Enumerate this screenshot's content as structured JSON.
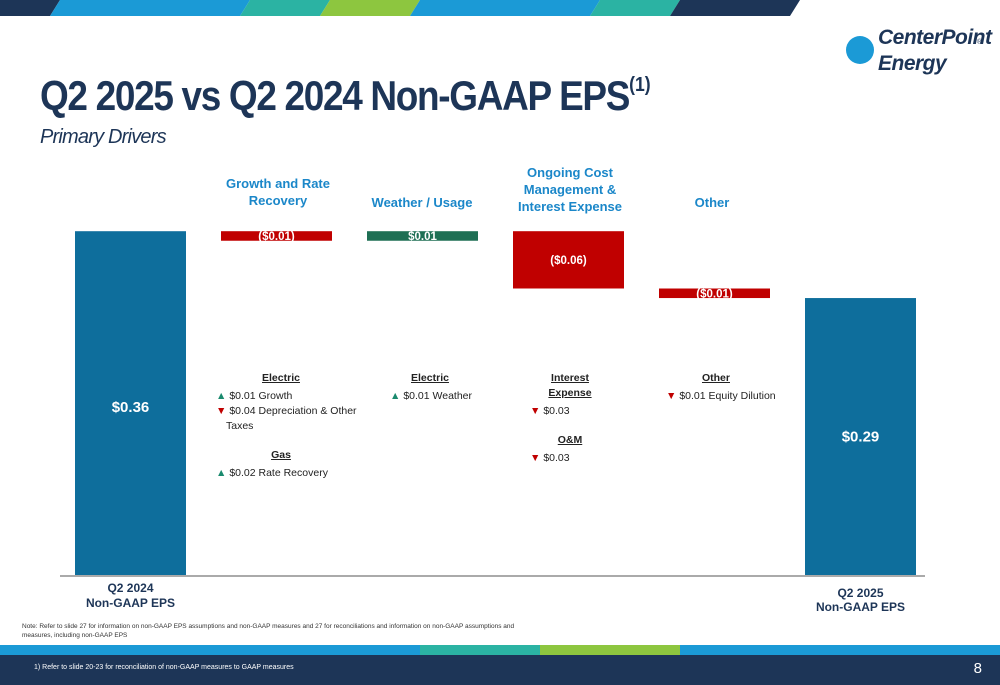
{
  "title": "Q2 2025 vs Q2 2024 Non-GAAP EPS",
  "title_sup": "(1)",
  "subtitle": "Primary Drivers",
  "logo": {
    "line1": "CenterPoint",
    "line2": "Energy",
    "reg": "®"
  },
  "colors": {
    "navy": "#1d3557",
    "blue_bar": "#0e6e9c",
    "red": "#c00000",
    "green": "#1e6f54",
    "accent_blue": "#1b87c9"
  },
  "chart_data": {
    "type": "waterfall",
    "baseline": 0,
    "start": {
      "label_line1": "Q2 2024",
      "label_line2": "Non-GAAP EPS",
      "value": 0.36,
      "display": "$0.36"
    },
    "steps": [
      {
        "name_lines": [
          "Growth and Rate",
          "Recovery"
        ],
        "value": -0.01,
        "display": "($0.01)"
      },
      {
        "name_lines": [
          "Weather / Usage"
        ],
        "value": 0.01,
        "display": "$0.01"
      },
      {
        "name_lines": [
          "Ongoing Cost",
          "Management &",
          "Interest Expense"
        ],
        "value": -0.06,
        "display": "($0.06)"
      },
      {
        "name_lines": [
          "Other"
        ],
        "value": -0.01,
        "display": "($0.01)"
      }
    ],
    "end": {
      "label_line1": "Q2 2025",
      "label_line2": "Non-GAAP EPS",
      "value": 0.29,
      "display": "$0.29"
    }
  },
  "drivers": [
    {
      "groups": [
        {
          "heading": "Electric",
          "items": [
            {
              "dir": "up",
              "arrow": "▲",
              "text": "$0.01  Growth"
            },
            {
              "dir": "down",
              "arrow": "▼",
              "text": "$0.04 Depreciation & Other",
              "cont": "Taxes"
            }
          ]
        },
        {
          "heading": "Gas",
          "items": [
            {
              "dir": "up",
              "arrow": "▲",
              "text": "$0.02 Rate Recovery"
            }
          ]
        }
      ]
    },
    {
      "groups": [
        {
          "heading": "Electric",
          "items": [
            {
              "dir": "up",
              "arrow": "▲",
              "text": "$0.01 Weather"
            }
          ]
        }
      ]
    },
    {
      "groups": [
        {
          "heading": "Interest Expense",
          "items": [
            {
              "dir": "down",
              "arrow": "▼",
              "text": "$0.03"
            }
          ]
        },
        {
          "heading": "O&M",
          "items": [
            {
              "dir": "down",
              "arrow": "▼",
              "text": "$0.03"
            }
          ]
        }
      ]
    },
    {
      "groups": [
        {
          "heading": "Other",
          "items": [
            {
              "dir": "down",
              "arrow": "▼",
              "text": "$0.01 Equity Dilution"
            }
          ]
        }
      ]
    }
  ],
  "note": "Note: Refer to slide 27 for information on non-GAAP EPS assumptions and non-GAAP measures and 27 for reconciliations and information on non-GAAP assumptions and measures, including non-GAAP EPS",
  "footnote": "1)       Refer to slide 20-23 for reconciliation of non-GAAP measures to GAAP measures",
  "page_number": "8"
}
